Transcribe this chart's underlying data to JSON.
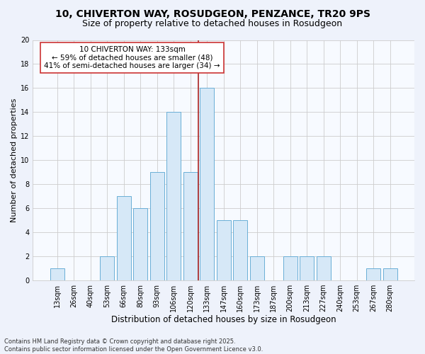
{
  "title1": "10, CHIVERTON WAY, ROSUDGEON, PENZANCE, TR20 9PS",
  "title2": "Size of property relative to detached houses in Rosudgeon",
  "xlabel": "Distribution of detached houses by size in Rosudgeon",
  "ylabel": "Number of detached properties",
  "categories": [
    "13sqm",
    "26sqm",
    "40sqm",
    "53sqm",
    "66sqm",
    "80sqm",
    "93sqm",
    "106sqm",
    "120sqm",
    "133sqm",
    "147sqm",
    "160sqm",
    "173sqm",
    "187sqm",
    "200sqm",
    "213sqm",
    "227sqm",
    "240sqm",
    "253sqm",
    "267sqm",
    "280sqm"
  ],
  "values": [
    1,
    0,
    0,
    2,
    7,
    6,
    9,
    14,
    9,
    16,
    5,
    5,
    2,
    0,
    2,
    2,
    2,
    0,
    0,
    1,
    1
  ],
  "bar_color": "#d6e8f7",
  "bar_edge_color": "#6aaed6",
  "highlight_index": 9,
  "highlight_line_color": "#aa2222",
  "annotation_text": "10 CHIVERTON WAY: 133sqm\n← 59% of detached houses are smaller (48)\n41% of semi-detached houses are larger (34) →",
  "annotation_box_color": "#ffffff",
  "annotation_box_edge_color": "#cc3333",
  "ylim": [
    0,
    20
  ],
  "yticks": [
    0,
    2,
    4,
    6,
    8,
    10,
    12,
    14,
    16,
    18,
    20
  ],
  "grid_color": "#cccccc",
  "background_color": "#eef2fb",
  "plot_bg_color": "#f7faff",
  "footer_text": "Contains HM Land Registry data © Crown copyright and database right 2025.\nContains public sector information licensed under the Open Government Licence v3.0.",
  "title1_fontsize": 10,
  "title2_fontsize": 9,
  "xlabel_fontsize": 8.5,
  "ylabel_fontsize": 8,
  "tick_fontsize": 7,
  "annotation_fontsize": 7.5,
  "footer_fontsize": 6
}
